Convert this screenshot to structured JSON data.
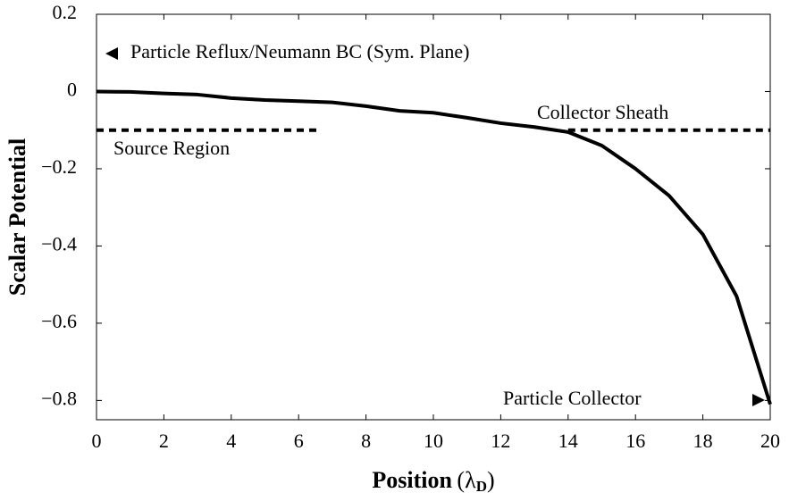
{
  "chart_data": {
    "type": "line",
    "xlabel": [
      "Position",
      "(λ",
      "D",
      ")"
    ],
    "ylabel": "Scalar Potential",
    "x": [
      0,
      1,
      2,
      3,
      4,
      5,
      6,
      7,
      8,
      9,
      10,
      11,
      12,
      13,
      14,
      15,
      16,
      17,
      18,
      19,
      20
    ],
    "series": [
      {
        "color": "#000000",
        "values": [
          0,
          -0.001,
          -0.005,
          -0.008,
          -0.017,
          -0.022,
          -0.025,
          -0.028,
          -0.038,
          -0.05,
          -0.055,
          -0.068,
          -0.082,
          -0.092,
          -0.105,
          -0.14,
          -0.2,
          -0.27,
          -0.37,
          -0.53,
          -0.81
        ]
      }
    ],
    "reference_lines": [
      {
        "y": -0.1,
        "x": [
          0,
          6.6
        ]
      },
      {
        "y": -0.1,
        "x": [
          14,
          20
        ]
      }
    ],
    "annotations": [
      "Particle Reflux/Neumann BC (Sym. Plane)",
      "Source Region",
      "Collector Sheath",
      "Particle Collector"
    ],
    "xlim": [
      0,
      20
    ],
    "ylim": [
      -0.85,
      0.2
    ],
    "xticks": [
      0,
      2,
      4,
      6,
      8,
      10,
      12,
      14,
      16,
      18,
      20
    ],
    "yticks": [
      {
        "value": 0.2,
        "label": "0.2"
      },
      0,
      {
        "value": -0.2,
        "label": "−0.2"
      },
      {
        "value": -0.4,
        "label": "−0.4"
      },
      {
        "value": -0.6,
        "label": "−0.6"
      },
      {
        "value": -0.8,
        "label": "−0.8"
      }
    ]
  }
}
